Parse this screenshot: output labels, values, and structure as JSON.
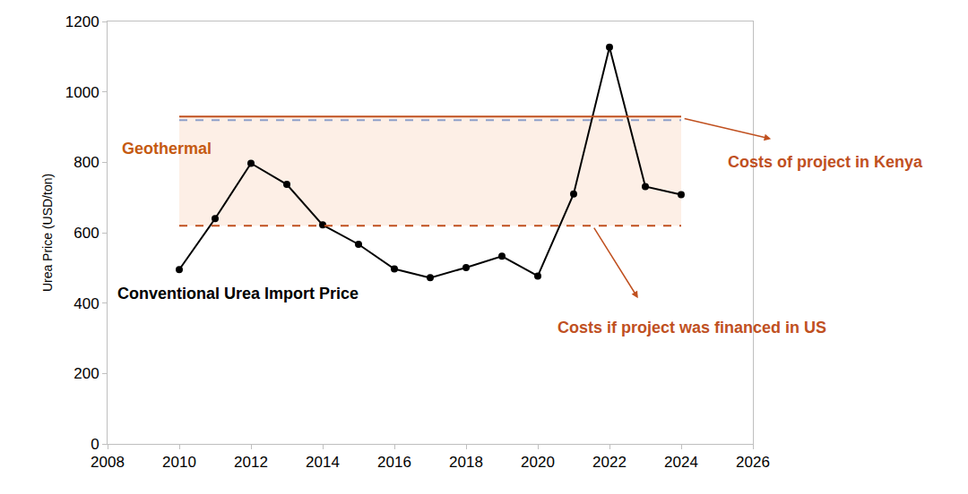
{
  "chart_data": {
    "type": "line",
    "x": [
      2010,
      2011,
      2012,
      2013,
      2014,
      2015,
      2016,
      2017,
      2018,
      2019,
      2020,
      2021,
      2022,
      2023,
      2024
    ],
    "series": [
      {
        "name": "Conventional Urea Import Price",
        "color": "#000000",
        "marker": "circle",
        "values": [
          495,
          640,
          797,
          737,
          622,
          567,
          497,
          472,
          501,
          533,
          477,
          710,
          1127,
          731,
          708
        ]
      }
    ],
    "xlim": [
      2008,
      2026
    ],
    "xticks": [
      2008,
      2010,
      2012,
      2014,
      2016,
      2018,
      2020,
      2022,
      2024,
      2026
    ],
    "ylim": [
      0,
      1200
    ],
    "yticks": [
      0,
      200,
      400,
      600,
      800,
      1000,
      1200
    ],
    "y_label": "Urea Price (USD/ton)",
    "grid": false,
    "band": {
      "label": "Geothermal",
      "x": [
        2010,
        2024
      ],
      "low": 620,
      "high": 930,
      "color": "#c55a11"
    },
    "reference_lines": [
      {
        "label": "Costs of project in Kenya",
        "value": 930,
        "color": "#c0501f",
        "line_style": "solid"
      },
      {
        "value": 920,
        "color": "#8e9fc9",
        "line_style": "dash"
      },
      {
        "label": "Costs if project was financed in US",
        "value": 620,
        "color": "#c0501f",
        "line_style": "dash"
      }
    ]
  }
}
